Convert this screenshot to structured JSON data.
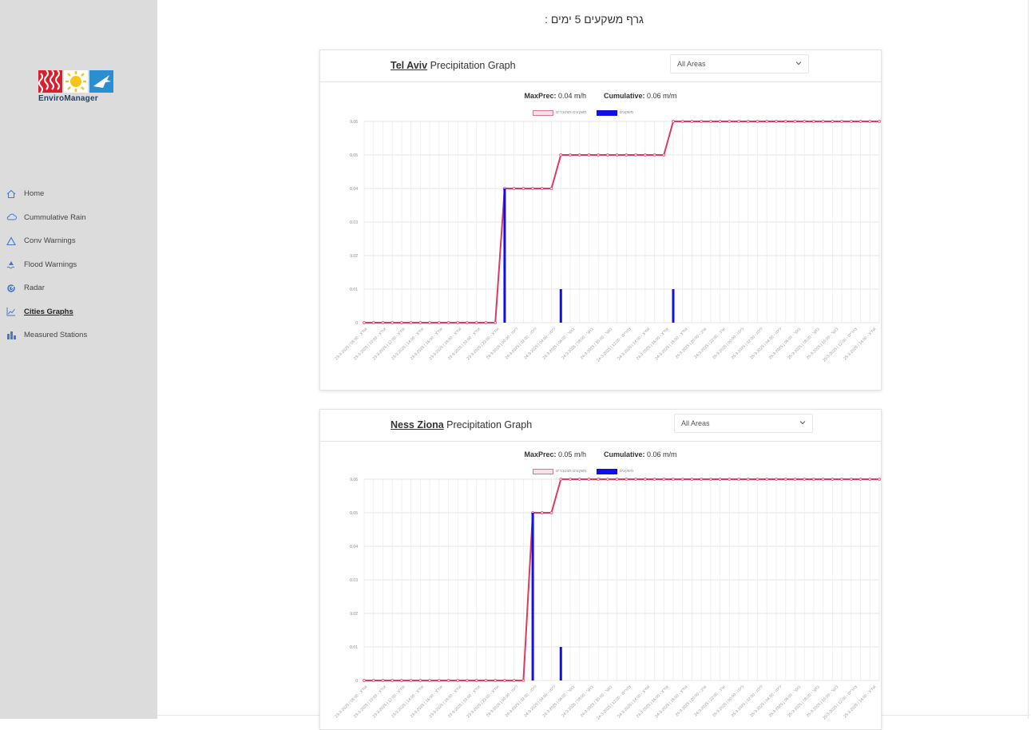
{
  "sidebar": {
    "logo": {
      "name": "EnviroManager",
      "colors": [
        "#d91f2b",
        "#f5c518",
        "#2a8fd0"
      ]
    },
    "items": [
      {
        "label": "Home",
        "icon": "home-icon",
        "active": false
      },
      {
        "label": "Cummulative Rain",
        "icon": "cloud-icon",
        "active": false
      },
      {
        "label": "Conv Warnings",
        "icon": "warning-icon",
        "active": false
      },
      {
        "label": "Flood Warnings",
        "icon": "flood-icon",
        "active": false
      },
      {
        "label": "Radar",
        "icon": "radar-icon",
        "active": false
      },
      {
        "label": "Cities Graphs",
        "icon": "line-chart-icon",
        "active": true
      },
      {
        "label": "Measured Stations",
        "icon": "bar-chart-icon",
        "active": false
      }
    ]
  },
  "page": {
    "title": "גרף משקעים 5 ימים :"
  },
  "cards": [
    {
      "city": "Tel Aviv",
      "title_suffix": " Precipitation Graph",
      "select_value": "All Areas",
      "maxprec_label": "MaxPrec:",
      "maxprec_value": " 0.04 m/h",
      "cumulative_label": "Cumulative:",
      "cumulative_value": " 0.06 m/m",
      "legend": [
        "משקעים מצטברים",
        "משקעים"
      ],
      "chart_data": {
        "type": "line",
        "ylim": [
          0,
          0.06
        ],
        "yticks": [
          "0",
          "0.01",
          "0.02",
          "0.03",
          "0.04",
          "0.05",
          "0.06"
        ],
        "x_count": 56,
        "xtick_labels": [
          "23-3-2025 | 08:00 - אח\"צ",
          "23-3-2025 | 10:00 - אח\"צ",
          "23-3-2025 | 12:00 - אח\"צ",
          "23-3-2025 | 14:00 - אח\"צ",
          "23-3-2025 | 16:00 - אח\"צ",
          "23-3-2025 | 18:00 - אח\"צ",
          "23-3-2025 | 20:00 - אח\"צ",
          "23-3-2025 | 22:00 - אח\"צ",
          "24-3-2025 | 00:00 - לילה",
          "24-3-2025 | 02:00 - לילה",
          "24-3-2025 | 04:00 - לילה",
          "24-3-2025 | 06:00 - בוקר",
          "24-3-2025 | 08:00 - בוקר",
          "24-3-2025 | 10:00 - בוקר",
          "24-3-2025 | 12:00 - צהריים",
          "24-3-2025 | 14:00 - אח\"צ",
          "24-3-2025 | 16:00 - אח\"צ",
          "24-3-2025 | 18:00 - אח\"צ",
          "24-3-2025 | 20:00 - ערב",
          "24-3-2025 | 22:00 - ערב",
          "25-3-2025 | 00:00 - לילה",
          "25-3-2025 | 02:00 - לילה",
          "25-3-2025 | 04:00 - לילה",
          "25-3-2025 | 06:00 - בוקר",
          "25-3-2025 | 08:00 - בוקר",
          "25-3-2025 | 10:00 - בוקר",
          "25-3-2025 | 12:00 - צהריים",
          "25-3-2025 | 14:00 - אח\"צ"
        ],
        "series": [
          {
            "name": "משקעים מצטברים",
            "kind": "line",
            "color": "#e0395f",
            "values": [
              0,
              0,
              0,
              0,
              0,
              0,
              0,
              0,
              0,
              0,
              0,
              0,
              0,
              0,
              0,
              0.04,
              0.04,
              0.04,
              0.04,
              0.04,
              0.04,
              0.05,
              0.05,
              0.05,
              0.05,
              0.05,
              0.05,
              0.05,
              0.05,
              0.05,
              0.05,
              0.05,
              0.05,
              0.06,
              0.06,
              0.06,
              0.06,
              0.06,
              0.06,
              0.06,
              0.06,
              0.06,
              0.06,
              0.06,
              0.06,
              0.06,
              0.06,
              0.06,
              0.06,
              0.06,
              0.06,
              0.06,
              0.06,
              0.06,
              0.06,
              0.06
            ]
          },
          {
            "name": "משקעים",
            "kind": "bar",
            "color": "#1010e6",
            "values": [
              0,
              0,
              0,
              0,
              0,
              0,
              0,
              0,
              0,
              0,
              0,
              0,
              0,
              0,
              0,
              0.04,
              0,
              0,
              0,
              0,
              0,
              0.01,
              0,
              0,
              0,
              0,
              0,
              0,
              0,
              0,
              0,
              0,
              0,
              0.01,
              0,
              0,
              0,
              0,
              0,
              0,
              0,
              0,
              0,
              0,
              0,
              0,
              0,
              0,
              0,
              0,
              0,
              0,
              0,
              0,
              0,
              0
            ]
          }
        ]
      }
    },
    {
      "city": "Ness Ziona",
      "title_suffix": " Precipitation Graph",
      "select_value": "All Areas",
      "maxprec_label": "MaxPrec:",
      "maxprec_value": " 0.05 m/h",
      "cumulative_label": "Cumulative:",
      "cumulative_value": " 0.06 m/m",
      "legend": [
        "משקעים מצטברים",
        "משקעים"
      ],
      "chart_data": {
        "type": "line",
        "ylim": [
          0,
          0.06
        ],
        "yticks": [
          "0",
          "0.01",
          "0.02",
          "0.03",
          "0.04",
          "0.05",
          "0.06"
        ],
        "x_count": 56,
        "xtick_labels": [
          "23-3-2025 | 08:00 - אח\"צ",
          "23-3-2025 | 10:00 - אח\"צ",
          "23-3-2025 | 12:00 - אח\"צ",
          "23-3-2025 | 14:00 - אח\"צ",
          "23-3-2025 | 16:00 - אח\"צ",
          "23-3-2025 | 18:00 - אח\"צ",
          "23-3-2025 | 20:00 - אח\"צ",
          "23-3-2025 | 22:00 - אח\"צ",
          "24-3-2025 | 00:00 - לילה",
          "24-3-2025 | 02:00 - לילה",
          "24-3-2025 | 04:00 - לילה",
          "24-3-2025 | 06:00 - בוקר",
          "24-3-2025 | 08:00 - בוקר",
          "24-3-2025 | 10:00 - בוקר",
          "24-3-2025 | 12:00 - צהריים",
          "24-3-2025 | 14:00 - אח\"צ",
          "24-3-2025 | 16:00 - אח\"צ",
          "24-3-2025 | 18:00 - אח\"צ",
          "24-3-2025 | 20:00 - ערב",
          "24-3-2025 | 22:00 - ערב",
          "25-3-2025 | 00:00 - לילה",
          "25-3-2025 | 02:00 - לילה",
          "25-3-2025 | 04:00 - לילה",
          "25-3-2025 | 06:00 - בוקר",
          "25-3-2025 | 08:00 - בוקר",
          "25-3-2025 | 10:00 - בוקר",
          "25-3-2025 | 12:00 - צהריים",
          "25-3-2025 | 14:00 - אח\"צ"
        ],
        "series": [
          {
            "name": "משקעים מצטברים",
            "kind": "line",
            "color": "#e0395f",
            "values": [
              0,
              0,
              0,
              0,
              0,
              0,
              0,
              0,
              0,
              0,
              0,
              0,
              0,
              0,
              0,
              0,
              0,
              0,
              0.05,
              0.05,
              0.05,
              0.06,
              0.06,
              0.06,
              0.06,
              0.06,
              0.06,
              0.06,
              0.06,
              0.06,
              0.06,
              0.06,
              0.06,
              0.06,
              0.06,
              0.06,
              0.06,
              0.06,
              0.06,
              0.06,
              0.06,
              0.06,
              0.06,
              0.06,
              0.06,
              0.06,
              0.06,
              0.06,
              0.06,
              0.06,
              0.06,
              0.06,
              0.06,
              0.06,
              0.06,
              0.06
            ]
          },
          {
            "name": "משקעים",
            "kind": "bar",
            "color": "#1010e6",
            "values": [
              0,
              0,
              0,
              0,
              0,
              0,
              0,
              0,
              0,
              0,
              0,
              0,
              0,
              0,
              0,
              0,
              0,
              0,
              0.05,
              0,
              0,
              0.01,
              0,
              0,
              0,
              0,
              0,
              0,
              0,
              0,
              0,
              0,
              0,
              0,
              0,
              0,
              0,
              0,
              0,
              0,
              0,
              0,
              0,
              0,
              0,
              0,
              0,
              0,
              0,
              0,
              0,
              0,
              0,
              0,
              0,
              0
            ]
          }
        ]
      }
    }
  ]
}
